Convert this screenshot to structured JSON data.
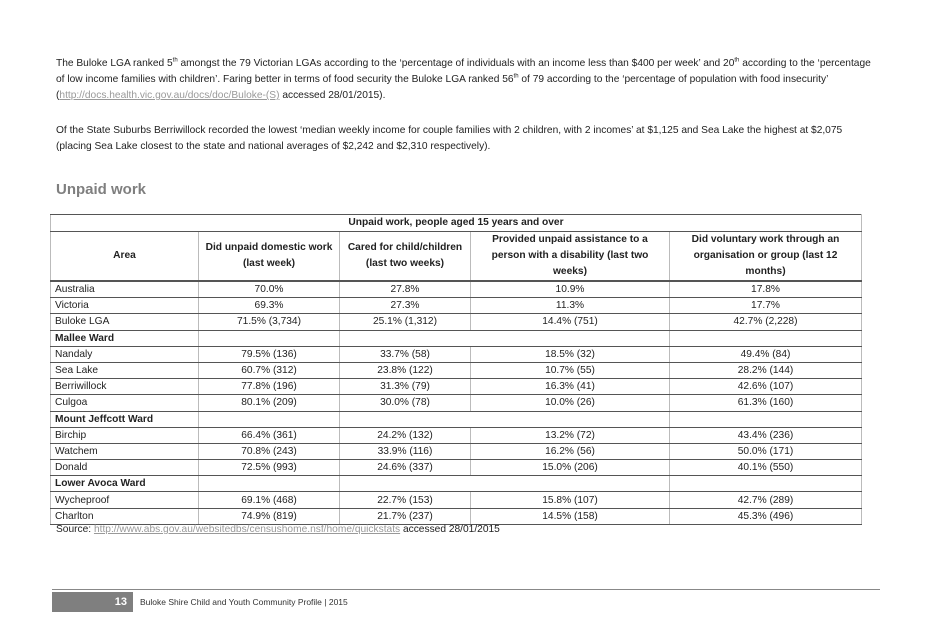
{
  "paragraphs": {
    "p1": {
      "a": "The Buloke LGA ranked 5",
      "sup1": "th",
      "b": " amongst the 79 Victorian LGAs according to the ‘percentage of individuals with an income less than $400 per week’ and 20",
      "sup2": "th",
      "c": " according to the ‘percentage of low income families with children’. Faring better in terms of food security the Buloke LGA ranked 56",
      "sup3": "th",
      "d": " of 79 according to the ‘percentage of population with food insecurity’ (",
      "link": "http://docs.health.vic.gov.au/docs/doc/Buloke-(S)",
      "e": " accessed 28/01/2015)."
    },
    "p2": "Of the State Suburbs Berriwillock recorded the lowest ‘median weekly income for couple families with 2 children, with 2 incomes’ at $1,125 and Sea Lake the highest at $2,075 (placing Sea Lake closest to the state and national averages of $2,242 and $2,310 respectively)."
  },
  "section_heading": "Unpaid work",
  "table": {
    "title": "Unpaid work, people aged 15 years and over",
    "headers": [
      "Area",
      "Did unpaid domestic work (last week)",
      "Cared for child/children (last two weeks)",
      "Provided unpaid assistance to a person with a disability (last two weeks)",
      "Did voluntary work through an organisation or group (last 12 months)"
    ],
    "rows": [
      {
        "area": "Australia",
        "values": [
          "70.0%",
          "27.8%",
          "10.9%",
          "17.8%"
        ]
      },
      {
        "area": "Victoria",
        "values": [
          "69.3%",
          "27.3%",
          "11.3%",
          "17.7%"
        ]
      },
      {
        "area": "Buloke LGA",
        "values": [
          "71.5% (3,734)",
          "25.1% (1,312)",
          "14.4% (751)",
          "42.7% (2,228)"
        ]
      },
      {
        "ward": "Mallee Ward"
      },
      {
        "area": "Nandaly",
        "values": [
          "79.5% (136)",
          "33.7% (58)",
          "18.5% (32)",
          "49.4% (84)"
        ]
      },
      {
        "area": "Sea Lake",
        "values": [
          "60.7% (312)",
          "23.8% (122)",
          "10.7% (55)",
          "28.2% (144)"
        ]
      },
      {
        "area": "Berriwillock",
        "values": [
          "77.8% (196)",
          "31.3% (79)",
          "16.3% (41)",
          "42.6% (107)"
        ]
      },
      {
        "area": "Culgoa",
        "values": [
          "80.1% (209)",
          "30.0% (78)",
          "10.0% (26)",
          "61.3% (160)"
        ]
      },
      {
        "ward": "Mount Jeffcott Ward"
      },
      {
        "area": "Birchip",
        "values": [
          "66.4% (361)",
          "24.2% (132)",
          "13.2% (72)",
          "43.4% (236)"
        ]
      },
      {
        "area": "Watchem",
        "values": [
          "70.8% (243)",
          "33.9% (116)",
          "16.2% (56)",
          "50.0% (171)"
        ]
      },
      {
        "area": "Donald",
        "values": [
          "72.5% (993)",
          "24.6% (337)",
          "15.0% (206)",
          "40.1% (550)"
        ]
      },
      {
        "ward": "Lower Avoca Ward"
      },
      {
        "area": "Wycheproof",
        "values": [
          "69.1% (468)",
          "22.7% (153)",
          "15.8% (107)",
          "42.7% (289)"
        ]
      },
      {
        "area": "Charlton",
        "values": [
          "74.9% (819)",
          "21.7% (237)",
          "14.5% (158)",
          "45.3% (496)"
        ]
      }
    ]
  },
  "source": {
    "label": "Source: ",
    "link": "http://www.abs.gov.au/websitedbs/censushome.nsf/home/quickstats",
    "suffix": " accessed 28/01/2015"
  },
  "footer": {
    "page_number": "13",
    "text": "Buloke Shire Child and Youth Community Profile | 2015"
  }
}
